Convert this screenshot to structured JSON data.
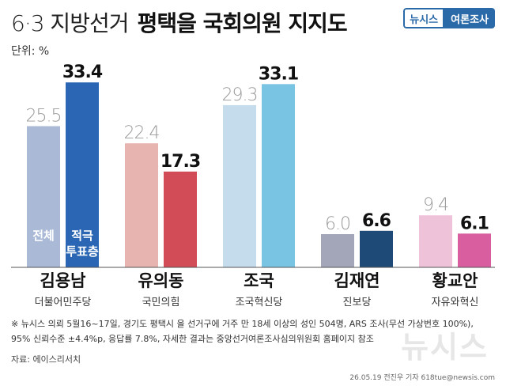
{
  "header": {
    "title_light": "6·3 지방선거",
    "title_bold": "평택을 국회의원 지지도",
    "badge_left": "뉴시스",
    "badge_right": "여론조사"
  },
  "unit_label": "단위: %",
  "chart_data": {
    "type": "bar",
    "categories": [
      {
        "name": "김용남",
        "party": "더불어민주당"
      },
      {
        "name": "유의동",
        "party": "국민의힘"
      },
      {
        "name": "조국",
        "party": "조국혁신당"
      },
      {
        "name": "김재연",
        "party": "진보당"
      },
      {
        "name": "황교안",
        "party": "자유와혁신"
      }
    ],
    "series": [
      {
        "name": "전체",
        "values": [
          25.5,
          22.4,
          29.3,
          6.0,
          9.4
        ]
      },
      {
        "name": "적극 투표층",
        "values": [
          33.4,
          17.3,
          33.1,
          6.6,
          6.1
        ]
      }
    ],
    "series_label_lines": [
      [
        "전체"
      ],
      [
        "적극",
        "투표층"
      ]
    ],
    "value_labels": [
      [
        "25.5",
        "22.4",
        "29.3",
        "6.0",
        "9.4"
      ],
      [
        "33.4",
        "17.3",
        "33.1",
        "6.6",
        "6.1"
      ]
    ],
    "ylim": [
      0,
      40
    ],
    "colors": [
      {
        "light": "#a9b9d6",
        "dark": "#2a66b3"
      },
      {
        "light": "#e8b4b0",
        "dark": "#d24c57"
      },
      {
        "light": "#c5dcec",
        "dark": "#79c4e3"
      },
      {
        "light": "#a3a6b8",
        "dark": "#1e4a78"
      },
      {
        "light": "#eec3da",
        "dark": "#d95ea0"
      }
    ]
  },
  "footnotes": [
    "※ 뉴시스 의뢰 5월16~17일, 경기도 평택시 을 선거구에 거주 만 18세 이상의 성인 504명, ARS 조사(무선 가상번호 100%),",
    "95% 신뢰수준 ±4.4%p, 응답률 7.8%, 자세한 결과는 중앙선거여론조사심의위원회 홈페이지 참조"
  ],
  "source": "자료: 에이스리서치",
  "credit": "26.05.19 전진우 기자 618tue@newsis.com",
  "watermark": "뉴시스"
}
